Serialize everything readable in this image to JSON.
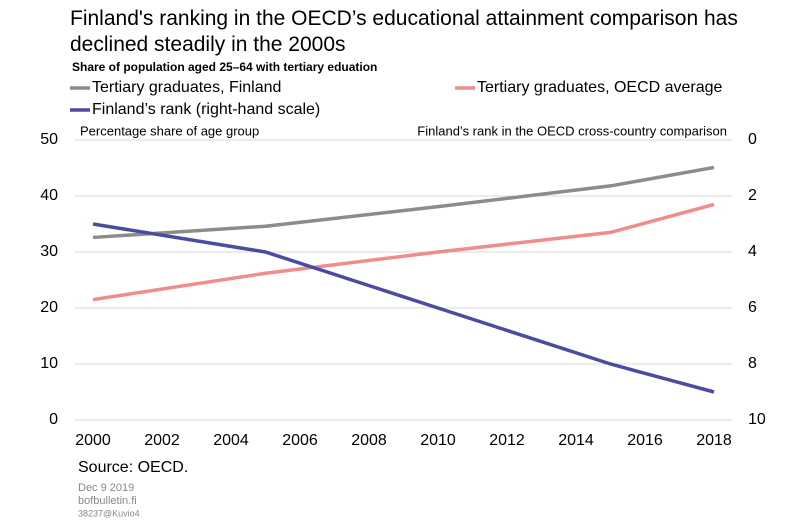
{
  "chart_data": {
    "type": "line",
    "title": "Finland's ranking in the OECD’s educational attainment comparison has declined steadily in the 2000s",
    "subtitle": "Share of population aged 25–64 with tertiary eduation",
    "y_label": "Percentage share of age group",
    "y2_label": "Finland’s rank in the OECD cross-country comparison",
    "x": [
      2000,
      2005,
      2010,
      2015,
      2018
    ],
    "series": [
      {
        "name": "Tertiary graduates, Finland",
        "color": "#8c8c8c",
        "values": [
          32.6,
          34.6,
          38.1,
          41.8,
          45.1
        ]
      },
      {
        "name": "Tertiary graduates, OECD average",
        "color": "#f08c8c",
        "values": [
          21.5,
          26.2,
          30,
          33.5,
          38.5
        ]
      },
      {
        "name": "Finland’s rank (right-hand scale)",
        "color": "#4b4ba0",
        "values": [
          3,
          4,
          6,
          8,
          9
        ],
        "axis": "y2"
      }
    ],
    "xlim": [
      2000,
      2018
    ],
    "xticks": [
      2000,
      2002,
      2004,
      2006,
      2008,
      2010,
      2012,
      2014,
      2016,
      2018
    ],
    "ylim": [
      0,
      50
    ],
    "yticks": [
      0,
      10,
      20,
      30,
      40,
      50
    ],
    "y2lim": [
      10,
      0
    ],
    "y2ticks": [
      0,
      2,
      4,
      6,
      8,
      10
    ],
    "grid": true,
    "source": "Source: OECD.",
    "date": "Dec 9 2019",
    "site": "bofbulletin.fi",
    "code": "38237@Kuvio4"
  }
}
